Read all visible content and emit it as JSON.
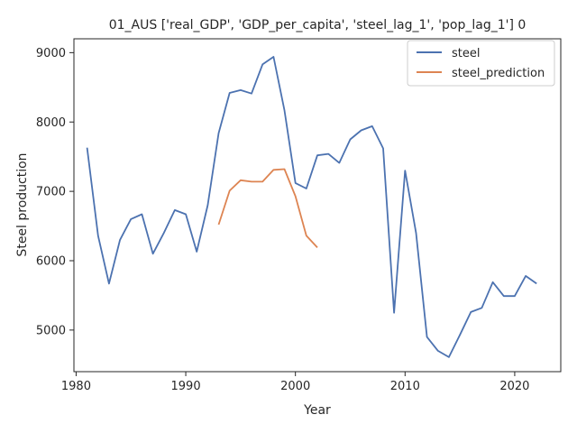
{
  "chart_data": {
    "type": "line",
    "title": "01_AUS ['real_GDP', 'GDP_per_capita', 'steel_lag_1', 'pop_lag_1'] 0",
    "xlabel": "Year",
    "ylabel": "Steel production",
    "xlim": [
      1979.8,
      2024.2
    ],
    "ylim": [
      4400,
      9200
    ],
    "xticks": [
      1980,
      1990,
      2000,
      2010,
      2020
    ],
    "yticks": [
      5000,
      6000,
      7000,
      8000,
      9000
    ],
    "grid": false,
    "legend_position": "top-right",
    "series": [
      {
        "name": "steel",
        "color": "#4c72b0",
        "x": [
          1981,
          1982,
          1983,
          1984,
          1985,
          1986,
          1987,
          1988,
          1989,
          1990,
          1991,
          1992,
          1993,
          1994,
          1995,
          1996,
          1997,
          1998,
          1999,
          2000,
          2001,
          2002,
          2003,
          2004,
          2005,
          2006,
          2007,
          2008,
          2009,
          2010,
          2011,
          2012,
          2013,
          2014,
          2015,
          2016,
          2017,
          2018,
          2019,
          2020,
          2021,
          2022
        ],
        "y": [
          7630,
          6360,
          5670,
          6300,
          6600,
          6670,
          6100,
          6400,
          6730,
          6670,
          6130,
          6800,
          7840,
          8420,
          8460,
          8410,
          8830,
          8940,
          8170,
          7120,
          7040,
          7520,
          7540,
          7410,
          7750,
          7880,
          7940,
          7620,
          5250,
          7300,
          6400,
          4900,
          4700,
          4610,
          4930,
          5260,
          5320,
          5690,
          5490,
          5490,
          5780,
          5670
        ]
      },
      {
        "name": "steel_prediction",
        "color": "#dd8452",
        "x": [
          1993,
          1994,
          1995,
          1996,
          1997,
          1998,
          1999,
          2000,
          2001,
          2002
        ],
        "y": [
          6520,
          7010,
          7160,
          7140,
          7140,
          7310,
          7320,
          6930,
          6360,
          6190
        ]
      }
    ]
  }
}
